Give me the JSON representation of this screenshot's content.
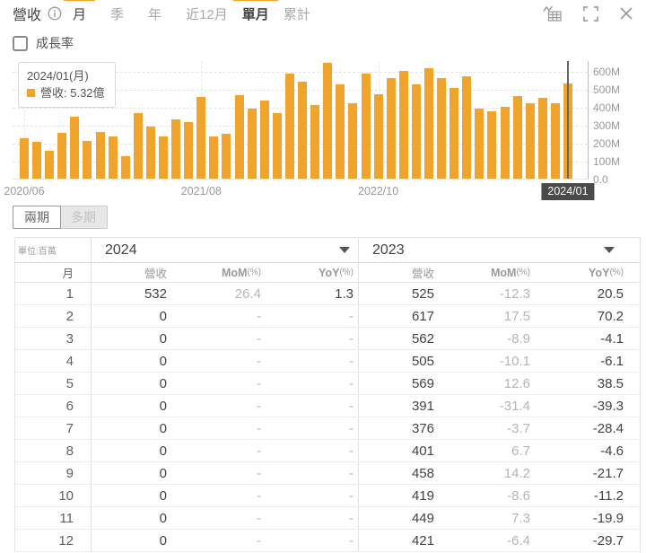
{
  "toolbar": {
    "title": "營收",
    "period_tabs": [
      {
        "label": "月",
        "active": true
      },
      {
        "label": "季",
        "active": false
      },
      {
        "label": "年",
        "active": false
      },
      {
        "label": "近12月",
        "active": false
      }
    ],
    "mode_tabs": [
      {
        "label": "單月",
        "active": true
      },
      {
        "label": "累計",
        "active": false
      }
    ]
  },
  "growth_rate": {
    "label": "成長率",
    "checked": false
  },
  "chart_data": {
    "type": "bar",
    "title": "營收(單月)",
    "unit": "百萬",
    "bar_color": "#F0A42C",
    "grid": true,
    "legend_position": "tooltip-top-left",
    "ylim": [
      0,
      660
    ],
    "y_ticks": [
      {
        "label": "600M",
        "v": 600
      },
      {
        "label": "500M",
        "v": 500
      },
      {
        "label": "400M",
        "v": 400
      },
      {
        "label": "300M",
        "v": 300
      },
      {
        "label": "200M",
        "v": 200
      },
      {
        "label": "100M",
        "v": 100
      },
      {
        "label": "0.0",
        "v": 0
      }
    ],
    "x": [
      "2020/06",
      "2020/07",
      "2020/08",
      "2020/09",
      "2020/10",
      "2020/11",
      "2020/12",
      "2021/01",
      "2021/02",
      "2021/03",
      "2021/04",
      "2021/05",
      "2021/06",
      "2021/07",
      "2021/08",
      "2021/09",
      "2021/10",
      "2021/11",
      "2021/12",
      "2022/01",
      "2022/02",
      "2022/03",
      "2022/04",
      "2022/05",
      "2022/06",
      "2022/07",
      "2022/08",
      "2022/09",
      "2022/10",
      "2022/11",
      "2022/12",
      "2023/01",
      "2023/02",
      "2023/03",
      "2023/04",
      "2023/05",
      "2023/06",
      "2023/07",
      "2023/08",
      "2023/09",
      "2023/10",
      "2023/11",
      "2023/12",
      "2024/01"
    ],
    "values": [
      223,
      207,
      153,
      253,
      345,
      212,
      262,
      233,
      123,
      367,
      292,
      237,
      328,
      317,
      453,
      237,
      250,
      467,
      390,
      436,
      363,
      586,
      538,
      411,
      644,
      525,
      420,
      585,
      472,
      560,
      599,
      525,
      617,
      562,
      505,
      569,
      391,
      376,
      401,
      458,
      419,
      449,
      421,
      532
    ],
    "x_tick_indices": [
      {
        "i": 0,
        "label": "2020/06",
        "highlight": false
      },
      {
        "i": 14,
        "label": "2021/08",
        "highlight": false
      },
      {
        "i": 28,
        "label": "2022/10",
        "highlight": false
      },
      {
        "i": 43,
        "label": "2024/01",
        "highlight": true
      }
    ],
    "crosshair_index": 43,
    "tooltip": {
      "title": "2024/01(月)",
      "series": "營收",
      "value": "5.32億",
      "text": "營收: 5.32億"
    }
  },
  "period_toggle": {
    "options": [
      {
        "label": "兩期",
        "active": true
      },
      {
        "label": "多期",
        "active": false
      }
    ]
  },
  "table": {
    "unit_label": "單位:百萬",
    "month_header": "月",
    "sections": [
      {
        "year": "2024",
        "columns": [
          {
            "label": "營收",
            "suffix": ""
          },
          {
            "label": "MoM",
            "suffix": "(%)"
          },
          {
            "label": "YoY",
            "suffix": "(%)"
          }
        ]
      },
      {
        "year": "2023",
        "columns": [
          {
            "label": "營收",
            "suffix": ""
          },
          {
            "label": "MoM",
            "suffix": "(%)"
          },
          {
            "label": "YoY",
            "suffix": "(%)"
          }
        ]
      }
    ],
    "rows": [
      {
        "month": "1",
        "y2024": [
          "532",
          "26.4",
          "1.3"
        ],
        "y2023": [
          "525",
          "-12.3",
          "20.5"
        ]
      },
      {
        "month": "2",
        "y2024": [
          "0",
          "-",
          "-"
        ],
        "y2023": [
          "617",
          "17.5",
          "70.2"
        ]
      },
      {
        "month": "3",
        "y2024": [
          "0",
          "-",
          "-"
        ],
        "y2023": [
          "562",
          "-8.9",
          "-4.1"
        ]
      },
      {
        "month": "4",
        "y2024": [
          "0",
          "-",
          "-"
        ],
        "y2023": [
          "505",
          "-10.1",
          "-6.1"
        ]
      },
      {
        "month": "5",
        "y2024": [
          "0",
          "-",
          "-"
        ],
        "y2023": [
          "569",
          "12.6",
          "38.5"
        ]
      },
      {
        "month": "6",
        "y2024": [
          "0",
          "-",
          "-"
        ],
        "y2023": [
          "391",
          "-31.4",
          "-39.3"
        ]
      },
      {
        "month": "7",
        "y2024": [
          "0",
          "-",
          "-"
        ],
        "y2023": [
          "376",
          "-3.7",
          "-28.4"
        ]
      },
      {
        "month": "8",
        "y2024": [
          "0",
          "-",
          "-"
        ],
        "y2023": [
          "401",
          "6.7",
          "-4.6"
        ]
      },
      {
        "month": "9",
        "y2024": [
          "0",
          "-",
          "-"
        ],
        "y2023": [
          "458",
          "14.2",
          "-21.7"
        ]
      },
      {
        "month": "10",
        "y2024": [
          "0",
          "-",
          "-"
        ],
        "y2023": [
          "419",
          "-8.6",
          "-11.2"
        ]
      },
      {
        "month": "11",
        "y2024": [
          "0",
          "-",
          "-"
        ],
        "y2023": [
          "449",
          "7.3",
          "-19.9"
        ]
      },
      {
        "month": "12",
        "y2024": [
          "0",
          "-",
          "-"
        ],
        "y2023": [
          "421",
          "-6.4",
          "-29.7"
        ]
      }
    ]
  }
}
